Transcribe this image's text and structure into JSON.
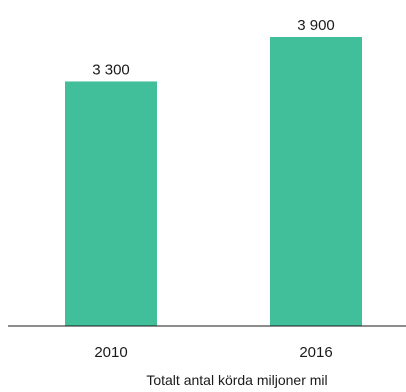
{
  "chart_data": {
    "type": "bar",
    "categories": [
      "2010",
      "2016"
    ],
    "values": [
      3300,
      3900
    ],
    "value_labels": [
      "3 300",
      "3 900"
    ],
    "title": "",
    "xlabel": "Totalt antal körda miljoner mil",
    "ylabel": "",
    "ylim": [
      0,
      3900
    ],
    "grid": false,
    "legend": "none",
    "bar_color": "#40bf9a",
    "axis_color": "#1a1a1a"
  }
}
